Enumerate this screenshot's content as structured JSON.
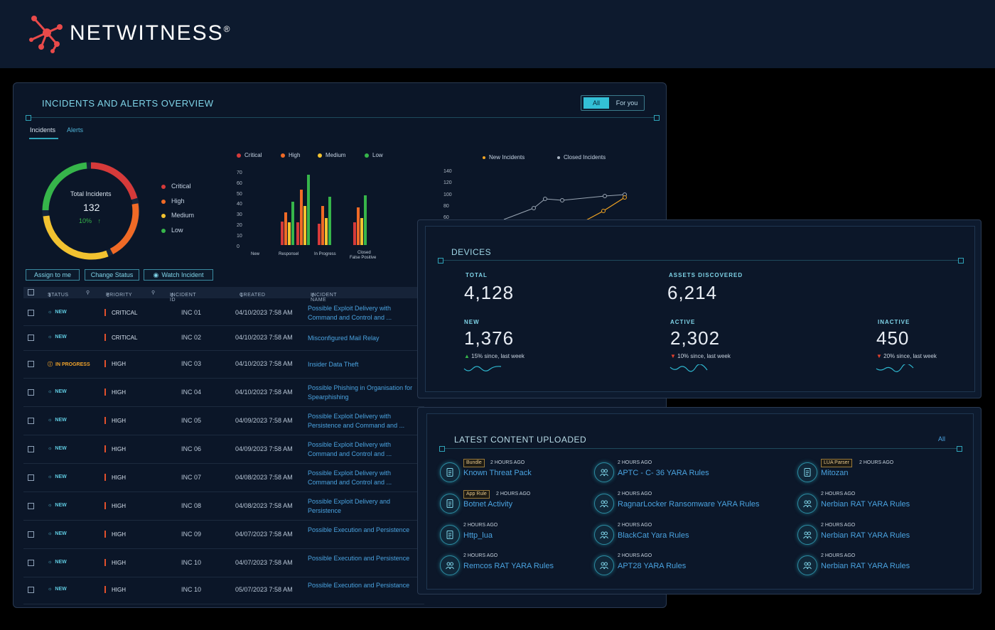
{
  "brand": {
    "name": "NETWITNESS",
    "reg": "®",
    "accent": "#e84a4a"
  },
  "overview": {
    "title": "INCIDENTS AND ALERTS OVERVIEW",
    "toggle": {
      "all": "All",
      "for_you": "For you"
    },
    "tabs": [
      "Incidents",
      "Alerts"
    ],
    "donut": {
      "label": "Total Incidents",
      "total": "132",
      "change": "10%",
      "change_icon": "arrow-up-icon",
      "legend": [
        "Critical",
        "High",
        "Medium",
        "Low"
      ],
      "colors": {
        "critical": "#d63a3a",
        "high": "#f06a26",
        "medium": "#f2c230",
        "low": "#36b54a"
      }
    },
    "bar_chart": {
      "legend": [
        "Critical",
        "High",
        "Medium",
        "Low"
      ],
      "y_ticks": [
        "70",
        "60",
        "50",
        "40",
        "30",
        "20",
        "10",
        "0"
      ],
      "categories": [
        "New",
        "Responsel",
        "In Progress",
        "Closed",
        "False Positive"
      ]
    },
    "line_chart": {
      "legend": [
        "New Incidents",
        "Closed Incidents"
      ],
      "y_ticks": [
        "140",
        "120",
        "100",
        "80",
        "60"
      ]
    },
    "actions": {
      "assign": "Assign to me",
      "change": "Change Status",
      "watch": "Watch Incident"
    },
    "table": {
      "headers": {
        "status": "STATUS",
        "priority": "PRIORITY",
        "id": "INCIDENT ID",
        "created": "CREATED",
        "name": "INCIDENT NAME"
      },
      "rows": [
        {
          "status": "NEW",
          "priority": "CRITICAL",
          "id": "INC 01",
          "created": "04/10/2023 7:58 AM",
          "name": "Possible Exploit Delivery with Command and Control and ..."
        },
        {
          "status": "NEW",
          "priority": "CRITICAL",
          "id": "INC 02",
          "created": "04/10/2023 7:58 AM",
          "name": "Misconfigured Mail Relay"
        },
        {
          "status": "IN PROGRESS",
          "priority": "HIGH",
          "id": "INC 03",
          "created": "04/10/2023 7:58 AM",
          "name": "Insider Data Theft"
        },
        {
          "status": "NEW",
          "priority": "HIGH",
          "id": "INC 04",
          "created": "04/10/2023 7:58 AM",
          "name": "Possible Phishing in Organisation for Spearphishing"
        },
        {
          "status": "NEW",
          "priority": "HIGH",
          "id": "INC 05",
          "created": "04/09/2023 7:58 AM",
          "name": "Possible Exploit Delivery with Persistence and Command and ..."
        },
        {
          "status": "NEW",
          "priority": "HIGH",
          "id": "INC 06",
          "created": "04/09/2023 7:58 AM",
          "name": "Possible Exploit Delivery with Command and Control and ..."
        },
        {
          "status": "NEW",
          "priority": "HIGH",
          "id": "INC 07",
          "created": "04/08/2023 7:58 AM",
          "name": "Possible Exploit Delivery with Command and Control and ..."
        },
        {
          "status": "NEW",
          "priority": "HIGH",
          "id": "INC 08",
          "created": "04/08/2023 7:58 AM",
          "name": "Possible Exploit Delivery and Persistence"
        },
        {
          "status": "NEW",
          "priority": "HIGH",
          "id": "INC 09",
          "created": "04/07/2023 7:58 AM",
          "name": "Possible Execution and Persistence"
        },
        {
          "status": "NEW",
          "priority": "HIGH",
          "id": "INC 10",
          "created": "04/07/2023 7:58 AM",
          "name": "Possible Execution and Persistence"
        },
        {
          "status": "NEW",
          "priority": "HIGH",
          "id": "INC 10",
          "created": "05/07/2023 7:58 AM",
          "name": "Possible Execution and Persistance"
        }
      ]
    }
  },
  "devices": {
    "title": "DEVICES",
    "total": {
      "label": "TOTAL",
      "value": "4,128"
    },
    "assets": {
      "label": "ASSETS DISCOVERED",
      "value": "6,214"
    },
    "new": {
      "label": "NEW",
      "value": "1,376",
      "change": "15% since, last week",
      "trend": "up"
    },
    "active": {
      "label": "ACTIVE",
      "value": "2,302",
      "change": "10% since, last week",
      "trend": "down"
    },
    "inactive": {
      "label": "INACTIVE",
      "value": "450",
      "change": "20% since, last week",
      "trend": "down"
    }
  },
  "content": {
    "title": "LATEST CONTENT UPLOADED",
    "all_link": "All",
    "items": [
      {
        "icon": "document-icon",
        "tag": "Bundle",
        "ago": "2 HOURS AGO",
        "name": "Known Threat Pack"
      },
      {
        "icon": "users-icon",
        "tag": "",
        "ago": "2 HOURS AGO",
        "name": "APTC - C- 36 YARA Rules"
      },
      {
        "icon": "document-icon",
        "tag": "LUA Parser",
        "ago": "2 HOURS AGO",
        "name": "Mitozan"
      },
      {
        "icon": "document-icon",
        "tag": "App Rule",
        "ago": "2 HOURS AGO",
        "name": "Botnet Activity"
      },
      {
        "icon": "users-icon",
        "tag": "",
        "ago": "2 HOURS AGO",
        "name": "RagnarLocker Ransomware YARA Rules"
      },
      {
        "icon": "users-icon",
        "tag": "",
        "ago": "2 HOURS AGO",
        "name": "Nerbian RAT YARA Rules"
      },
      {
        "icon": "document-icon",
        "tag": "",
        "ago": "2 HOURS AGO",
        "name": "Http_lua"
      },
      {
        "icon": "users-icon",
        "tag": "",
        "ago": "2 HOURS AGO",
        "name": "BlackCat Yara Rules"
      },
      {
        "icon": "users-icon",
        "tag": "",
        "ago": "2 HOURS AGO",
        "name": "Nerbian RAT YARA Rules"
      },
      {
        "icon": "users-icon",
        "tag": "",
        "ago": "2 HOURS AGO",
        "name": "Remcos RAT YARA Rules"
      },
      {
        "icon": "users-icon",
        "tag": "",
        "ago": "2 HOURS AGO",
        "name": "APT28 YARA Rules"
      },
      {
        "icon": "users-icon",
        "tag": "",
        "ago": "2 HOURS AGO",
        "name": "Nerbian RAT YARA Rules"
      }
    ]
  }
}
